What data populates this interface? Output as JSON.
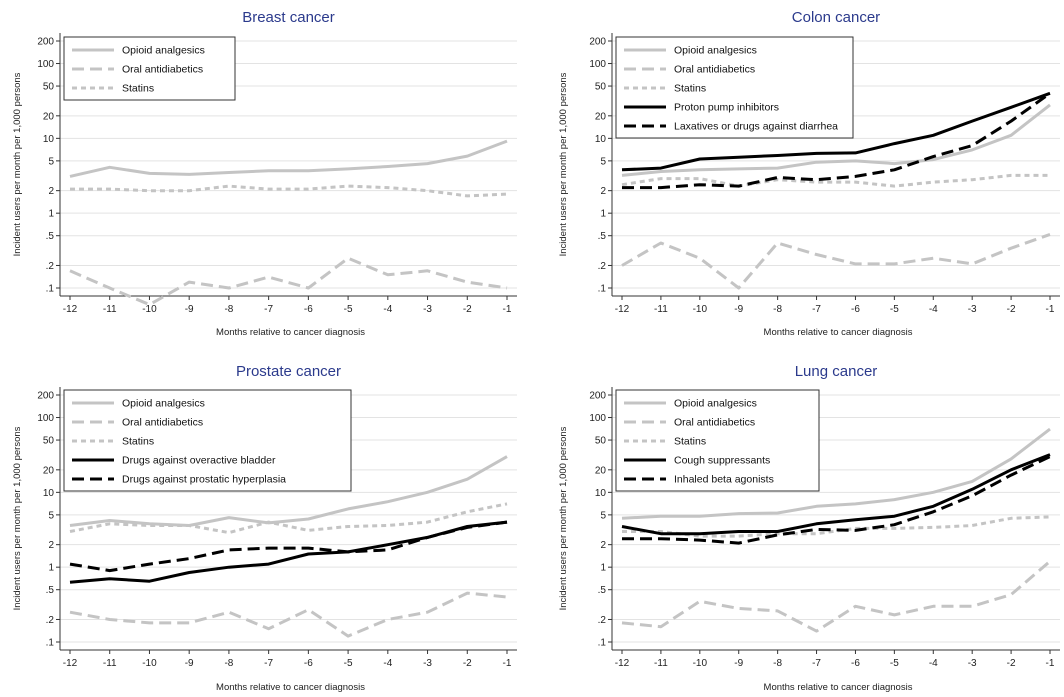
{
  "figure": {
    "ylabel": "Incident users per month per 1,000 persons",
    "xlabel": "Months relative to cancer diagnosis"
  },
  "styles": {
    "Opioid analgesics": {
      "color": "#c4c4c4",
      "dash": "solid",
      "width": 3
    },
    "Oral antidiabetics": {
      "color": "#c4c4c4",
      "dash": "long-dash",
      "width": 3
    },
    "Statins": {
      "color": "#c4c4c4",
      "dash": "short-dash",
      "width": 3
    },
    "Proton pump inhibitors": {
      "color": "#000000",
      "dash": "solid",
      "width": 3
    },
    "Laxatives or drugs against diarrhea": {
      "color": "#000000",
      "dash": "long-dash",
      "width": 3
    },
    "Drugs against overactive bladder": {
      "color": "#000000",
      "dash": "solid",
      "width": 3
    },
    "Drugs against prostatic hyperplasia": {
      "color": "#000000",
      "dash": "long-dash",
      "width": 3
    },
    "Cough suppressants": {
      "color": "#000000",
      "dash": "solid",
      "width": 3
    },
    "Inhaled beta agonists": {
      "color": "#000000",
      "dash": "long-dash",
      "width": 3
    }
  },
  "chart_data": [
    {
      "type": "line",
      "title": "Breast cancer",
      "xlabel": "Months relative to cancer diagnosis",
      "ylabel": "Incident users per month per 1,000 persons",
      "yscale": "log",
      "x": [
        -12,
        -11,
        -10,
        -9,
        -8,
        -7,
        -6,
        -5,
        -4,
        -3,
        -2,
        -1
      ],
      "xticks": [
        "-12",
        "-11",
        "-10",
        "-9",
        "-8",
        "-7",
        "-6",
        "-5",
        "-4",
        "-3",
        "-2",
        "-1"
      ],
      "yticks": [
        {
          "v": 200,
          "label": "200"
        },
        {
          "v": 100,
          "label": "100"
        },
        {
          "v": 50,
          "label": "50"
        },
        {
          "v": 20,
          "label": "20"
        },
        {
          "v": 10,
          "label": "10"
        },
        {
          "v": 5,
          "label": "5"
        },
        {
          "v": 2,
          "label": "2"
        },
        {
          "v": 1,
          "label": "1"
        },
        {
          "v": 0.5,
          "label": ".5"
        },
        {
          "v": 0.2,
          "label": ".2"
        },
        {
          "v": 0.1,
          "label": ".1"
        }
      ],
      "legend_position": "top-left",
      "series": [
        {
          "name": "Opioid analgesics",
          "values": [
            3.1,
            4.1,
            3.4,
            3.3,
            3.5,
            3.7,
            3.7,
            3.9,
            4.2,
            4.6,
            5.8,
            9.2
          ]
        },
        {
          "name": "Oral antidiabetics",
          "values": [
            0.17,
            0.1,
            0.06,
            0.12,
            0.1,
            0.14,
            0.1,
            0.25,
            0.15,
            0.17,
            0.12,
            0.1
          ]
        },
        {
          "name": "Statins",
          "values": [
            2.1,
            2.1,
            2.0,
            2.0,
            2.3,
            2.1,
            2.1,
            2.3,
            2.2,
            2.0,
            1.7,
            1.8
          ]
        }
      ]
    },
    {
      "type": "line",
      "title": "Colon cancer",
      "xlabel": "Months relative to cancer diagnosis",
      "ylabel": "Incident users per month per 1,000 persons",
      "yscale": "log",
      "x": [
        -12,
        -11,
        -10,
        -9,
        -8,
        -7,
        -6,
        -5,
        -4,
        -3,
        -2,
        -1
      ],
      "xticks": [
        "-12",
        "-11",
        "-10",
        "-9",
        "-8",
        "-7",
        "-6",
        "-5",
        "-4",
        "-3",
        "-2",
        "-1"
      ],
      "yticks": [
        {
          "v": 200,
          "label": "200"
        },
        {
          "v": 100,
          "label": "100"
        },
        {
          "v": 50,
          "label": "50"
        },
        {
          "v": 20,
          "label": "20"
        },
        {
          "v": 10,
          "label": "10"
        },
        {
          "v": 5,
          "label": "5"
        },
        {
          "v": 2,
          "label": "2"
        },
        {
          "v": 1,
          "label": "1"
        },
        {
          "v": 0.5,
          "label": ".5"
        },
        {
          "v": 0.2,
          "label": ".2"
        },
        {
          "v": 0.1,
          "label": ".1"
        }
      ],
      "legend_position": "top-left",
      "series": [
        {
          "name": "Opioid analgesics",
          "values": [
            3.2,
            3.6,
            3.8,
            3.9,
            4.0,
            4.8,
            5.0,
            4.6,
            5.2,
            7.0,
            11.0,
            28.0
          ]
        },
        {
          "name": "Oral antidiabetics",
          "values": [
            0.2,
            0.4,
            0.25,
            0.1,
            0.4,
            0.28,
            0.21,
            0.21,
            0.25,
            0.21,
            0.34,
            0.52
          ]
        },
        {
          "name": "Statins",
          "values": [
            2.4,
            2.9,
            2.9,
            2.3,
            2.8,
            2.6,
            2.6,
            2.3,
            2.6,
            2.8,
            3.2,
            3.2
          ]
        },
        {
          "name": "Proton pump inhibitors",
          "values": [
            3.8,
            4.0,
            5.3,
            5.6,
            5.9,
            6.3,
            6.4,
            8.5,
            11.0,
            17.0,
            26.0,
            40.0
          ]
        },
        {
          "name": "Laxatives or drugs against diarrhea",
          "values": [
            2.2,
            2.2,
            2.4,
            2.3,
            3.0,
            2.8,
            3.1,
            3.8,
            5.7,
            8.0,
            17.0,
            40.0
          ]
        }
      ]
    },
    {
      "type": "line",
      "title": "Prostate cancer",
      "xlabel": "Months relative to cancer diagnosis",
      "ylabel": "Incident users per month per 1,000 persons",
      "yscale": "log",
      "x": [
        -12,
        -11,
        -10,
        -9,
        -8,
        -7,
        -6,
        -5,
        -4,
        -3,
        -2,
        -1
      ],
      "xticks": [
        "-12",
        "-11",
        "-10",
        "-9",
        "-8",
        "-7",
        "-6",
        "-5",
        "-4",
        "-3",
        "-2",
        "-1"
      ],
      "yticks": [
        {
          "v": 200,
          "label": "200"
        },
        {
          "v": 100,
          "label": "100"
        },
        {
          "v": 50,
          "label": "50"
        },
        {
          "v": 20,
          "label": "20"
        },
        {
          "v": 10,
          "label": "10"
        },
        {
          "v": 5,
          "label": "5"
        },
        {
          "v": 2,
          "label": "2"
        },
        {
          "v": 1,
          "label": "1"
        },
        {
          "v": 0.5,
          "label": ".5"
        },
        {
          "v": 0.2,
          "label": ".2"
        },
        {
          "v": 0.1,
          "label": ".1"
        }
      ],
      "legend_position": "top-left",
      "series": [
        {
          "name": "Opioid analgesics",
          "values": [
            3.6,
            4.2,
            3.8,
            3.6,
            4.6,
            3.9,
            4.4,
            6.0,
            7.5,
            10.0,
            15.0,
            30.0
          ]
        },
        {
          "name": "Oral antidiabetics",
          "values": [
            0.25,
            0.2,
            0.18,
            0.18,
            0.25,
            0.15,
            0.27,
            0.12,
            0.2,
            0.25,
            0.45,
            0.4
          ]
        },
        {
          "name": "Statins",
          "values": [
            3.0,
            3.8,
            3.6,
            3.6,
            2.9,
            4.0,
            3.1,
            3.5,
            3.6,
            4.0,
            5.5,
            7.0
          ]
        },
        {
          "name": "Drugs against overactive bladder",
          "values": [
            0.63,
            0.7,
            0.65,
            0.85,
            1.0,
            1.1,
            1.5,
            1.6,
            2.0,
            2.5,
            3.5,
            4.0
          ]
        },
        {
          "name": "Drugs against prostatic hyperplasia",
          "values": [
            1.1,
            0.9,
            1.1,
            1.3,
            1.7,
            1.8,
            1.8,
            1.6,
            1.7,
            2.5,
            3.4,
            4.0
          ]
        }
      ]
    },
    {
      "type": "line",
      "title": "Lung cancer",
      "xlabel": "Months relative to cancer diagnosis",
      "ylabel": "Incident users per month per 1,000 persons",
      "yscale": "log",
      "x": [
        -12,
        -11,
        -10,
        -9,
        -8,
        -7,
        -6,
        -5,
        -4,
        -3,
        -2,
        -1
      ],
      "xticks": [
        "-12",
        "-11",
        "-10",
        "-9",
        "-8",
        "-7",
        "-6",
        "-5",
        "-4",
        "-3",
        "-2",
        "-1"
      ],
      "yticks": [
        {
          "v": 200,
          "label": "200"
        },
        {
          "v": 100,
          "label": "100"
        },
        {
          "v": 50,
          "label": "50"
        },
        {
          "v": 20,
          "label": "20"
        },
        {
          "v": 10,
          "label": "10"
        },
        {
          "v": 5,
          "label": "5"
        },
        {
          "v": 2,
          "label": "2"
        },
        {
          "v": 1,
          "label": "1"
        },
        {
          "v": 0.5,
          "label": ".5"
        },
        {
          "v": 0.2,
          "label": ".2"
        },
        {
          "v": 0.1,
          "label": ".1"
        }
      ],
      "legend_position": "top-left",
      "series": [
        {
          "name": "Opioid analgesics",
          "values": [
            4.5,
            4.8,
            4.8,
            5.2,
            5.3,
            6.5,
            7.0,
            8.0,
            10.0,
            14.0,
            28.0,
            70.0
          ]
        },
        {
          "name": "Oral antidiabetics",
          "values": [
            0.18,
            0.16,
            0.35,
            0.28,
            0.26,
            0.14,
            0.3,
            0.23,
            0.3,
            0.3,
            0.43,
            1.2
          ]
        },
        {
          "name": "Statins",
          "values": [
            3.0,
            3.0,
            2.6,
            2.6,
            2.8,
            2.8,
            3.3,
            3.3,
            3.4,
            3.6,
            4.5,
            4.7
          ]
        },
        {
          "name": "Cough suppressants",
          "values": [
            3.5,
            2.8,
            2.8,
            3.0,
            3.0,
            3.8,
            4.3,
            4.8,
            6.5,
            11.0,
            20.0,
            32.0
          ]
        },
        {
          "name": "Inhaled beta agonists",
          "values": [
            2.4,
            2.4,
            2.3,
            2.1,
            2.7,
            3.2,
            3.1,
            3.7,
            5.5,
            9.0,
            17.0,
            30.0
          ]
        }
      ]
    }
  ]
}
